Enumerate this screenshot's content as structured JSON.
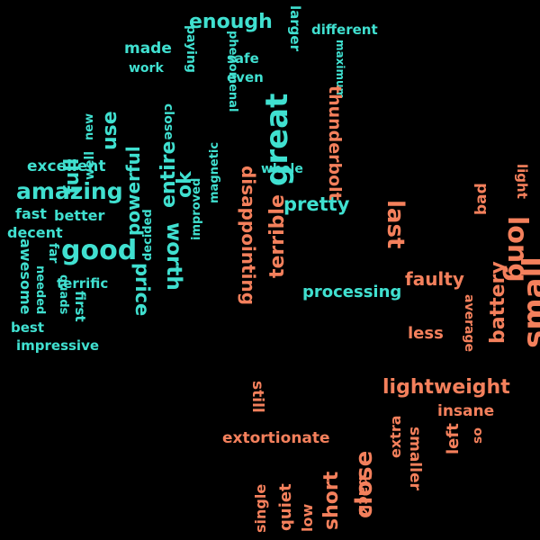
{
  "colors": {
    "background": "#000000",
    "positive": "#40e0d0",
    "negative": "#f4805c"
  },
  "words": [
    {
      "text": "great",
      "group": "positive"
    },
    {
      "text": "enough",
      "group": "positive"
    },
    {
      "text": "larger",
      "group": "positive"
    },
    {
      "text": "different",
      "group": "positive"
    },
    {
      "text": "maximum",
      "group": "positive"
    },
    {
      "text": "made",
      "group": "positive"
    },
    {
      "text": "paying",
      "group": "positive"
    },
    {
      "text": "safe",
      "group": "positive"
    },
    {
      "text": "phenomenal",
      "group": "positive"
    },
    {
      "text": "work",
      "group": "positive"
    },
    {
      "text": "use",
      "group": "positive"
    },
    {
      "text": "even",
      "group": "positive"
    },
    {
      "text": "new",
      "group": "positive"
    },
    {
      "text": "powerful",
      "group": "positive"
    },
    {
      "text": "entire",
      "group": "positive"
    },
    {
      "text": "close",
      "group": "positive"
    },
    {
      "text": "magnetic",
      "group": "positive"
    },
    {
      "text": "improved",
      "group": "positive"
    },
    {
      "text": "full",
      "group": "positive"
    },
    {
      "text": "well",
      "group": "positive"
    },
    {
      "text": "ok",
      "group": "positive"
    },
    {
      "text": "excellent",
      "group": "positive"
    },
    {
      "text": "decided",
      "group": "positive"
    },
    {
      "text": "whole",
      "group": "positive"
    },
    {
      "text": "amazing",
      "group": "positive"
    },
    {
      "text": "pretty",
      "group": "positive"
    },
    {
      "text": "fast",
      "group": "positive"
    },
    {
      "text": "better",
      "group": "positive"
    },
    {
      "text": "decent",
      "group": "positive"
    },
    {
      "text": "good",
      "group": "positive"
    },
    {
      "text": "worth",
      "group": "positive"
    },
    {
      "text": "far",
      "group": "positive"
    },
    {
      "text": "awesome",
      "group": "positive"
    },
    {
      "text": "needed",
      "group": "positive"
    },
    {
      "text": "quads",
      "group": "positive"
    },
    {
      "text": "terrific",
      "group": "positive"
    },
    {
      "text": "price",
      "group": "positive"
    },
    {
      "text": "first",
      "group": "positive"
    },
    {
      "text": "best",
      "group": "positive"
    },
    {
      "text": "impressive",
      "group": "positive"
    },
    {
      "text": "processing",
      "group": "positive"
    },
    {
      "text": "thunderbolt",
      "group": "negative"
    },
    {
      "text": "disappointing",
      "group": "negative"
    },
    {
      "text": "terrible",
      "group": "negative"
    },
    {
      "text": "last",
      "group": "negative"
    },
    {
      "text": "bad",
      "group": "negative"
    },
    {
      "text": "light",
      "group": "negative"
    },
    {
      "text": "long",
      "group": "negative"
    },
    {
      "text": "small",
      "group": "negative"
    },
    {
      "text": "faulty",
      "group": "negative"
    },
    {
      "text": "battery",
      "group": "negative"
    },
    {
      "text": "average",
      "group": "negative"
    },
    {
      "text": "less",
      "group": "negative"
    },
    {
      "text": "lightweight",
      "group": "negative"
    },
    {
      "text": "still",
      "group": "negative"
    },
    {
      "text": "insane",
      "group": "negative"
    },
    {
      "text": "extortionate",
      "group": "negative"
    },
    {
      "text": "extra",
      "group": "negative"
    },
    {
      "text": "left",
      "group": "negative"
    },
    {
      "text": "so",
      "group": "negative"
    },
    {
      "text": "smaller",
      "group": "negative"
    },
    {
      "text": "single",
      "group": "negative"
    },
    {
      "text": "quiet",
      "group": "negative"
    },
    {
      "text": "low",
      "group": "negative"
    },
    {
      "text": "short",
      "group": "negative"
    },
    {
      "text": "close",
      "group": "negative"
    },
    {
      "text": "back",
      "group": "negative"
    }
  ]
}
